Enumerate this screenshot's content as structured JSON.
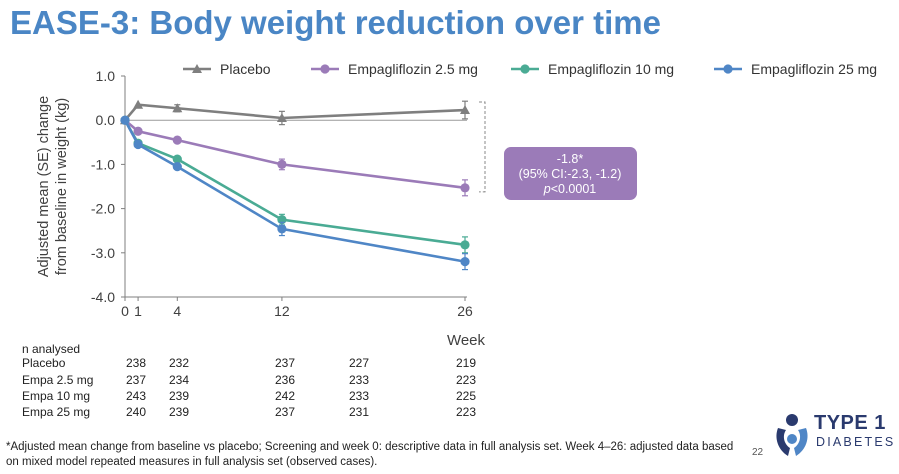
{
  "title": "EASE-3: Body weight reduction over time",
  "chart_data": {
    "type": "line",
    "title": "",
    "xlabel": "Week",
    "ylabel": "Adjusted mean (SE) change from baseline in weight (kg)",
    "x": [
      0,
      1,
      4,
      12,
      26
    ],
    "x_tick_labels": [
      "0",
      "1",
      "4",
      "12",
      "26"
    ],
    "ylim": [
      -4.0,
      1.0
    ],
    "y_ticks": [
      1.0,
      0.0,
      -1.0,
      -2.0,
      -3.0,
      -4.0
    ],
    "y_tick_labels": [
      "1.0",
      "0.0",
      "-1.0",
      "-2.0",
      "-3.0",
      "-4.0"
    ],
    "grid": false,
    "legend_position": "top",
    "series": [
      {
        "name": "Placebo",
        "color": "#7f7f7f",
        "marker": "triangle",
        "values": [
          0.0,
          0.35,
          0.27,
          0.05,
          0.23
        ],
        "se": [
          0,
          0,
          0.08,
          0.15,
          0.2
        ]
      },
      {
        "name": "Empagliflozin 2.5 mg",
        "color": "#9b7bb8",
        "marker": "circle",
        "values": [
          0.0,
          -0.25,
          -0.45,
          -1.0,
          -1.53
        ],
        "se": [
          0,
          0,
          0,
          0.12,
          0.18
        ]
      },
      {
        "name": "Empagliflozin 10 mg",
        "color": "#4aab94",
        "marker": "circle",
        "values": [
          0.0,
          -0.52,
          -0.88,
          -2.25,
          -2.82
        ],
        "se": [
          0,
          0,
          0,
          0.12,
          0.18
        ]
      },
      {
        "name": "Empagliflozin 25 mg",
        "color": "#4f86c6",
        "marker": "circle",
        "values": [
          0.0,
          -0.55,
          -1.05,
          -2.46,
          -3.2
        ],
        "se": [
          0,
          0,
          0,
          0.15,
          0.18
        ]
      }
    ],
    "annotation": {
      "line1": "-1.8*",
      "line2": "(95% CI:-2.3, -1.2)",
      "line3_italic": "p",
      "line3_rest": "<0.0001",
      "color": "#9b7bb8",
      "bracket_from": 0.23,
      "bracket_to": -1.53
    }
  },
  "n_analysed": {
    "header": "n analysed",
    "rows": [
      {
        "label": "Placebo",
        "values": [
          "238",
          "232",
          "237",
          "227",
          "219"
        ]
      },
      {
        "label": "Empa 2.5 mg",
        "values": [
          "237",
          "234",
          "236",
          "233",
          "223"
        ]
      },
      {
        "label": "Empa 10 mg",
        "values": [
          "243",
          "239",
          "242",
          "233",
          "225"
        ]
      },
      {
        "label": "Empa 25 mg",
        "values": [
          "240",
          "239",
          "237",
          "231",
          "223"
        ]
      }
    ]
  },
  "footnote": "*Adjusted mean change from baseline vs placebo; Screening and week 0: descriptive data in full analysis set. Week 4–26: adjusted data based on mixed model repeated measures in full analysis set (observed cases).",
  "page_number": "22",
  "logo": {
    "word": "TYPE 1",
    "sub": "DIABETES",
    "color": "#2a3a6e"
  }
}
